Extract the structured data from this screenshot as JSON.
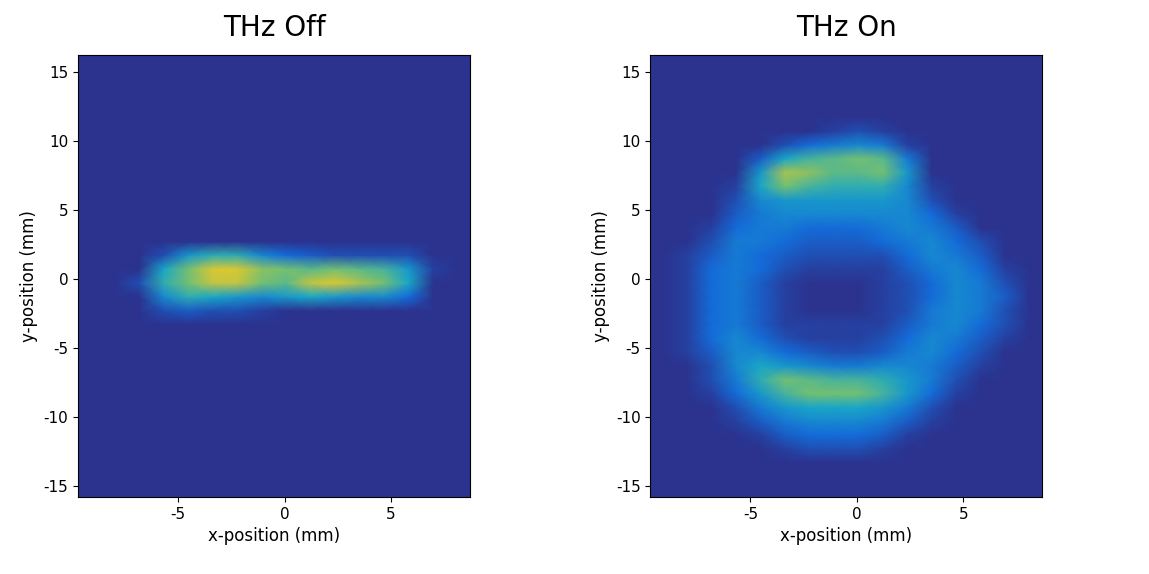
{
  "chart_data": [
    {
      "type": "heatmap",
      "title": "THz Off",
      "x_label": "x-position (mm)",
      "y_label": "y-position (mm)",
      "xlim": [
        -9.7,
        8.7
      ],
      "ylim": [
        -15.8,
        16.2
      ],
      "xticks": [
        -5,
        0,
        5
      ],
      "yticks": [
        -15,
        -10,
        -5,
        0,
        5,
        10,
        15
      ],
      "clim": [
        0,
        1
      ],
      "x_edges": [
        -9.7,
        -8.55,
        -7.4,
        -6.25,
        -5.1,
        -3.95,
        -2.8,
        -1.65,
        -0.5,
        0.65,
        1.8,
        2.95,
        4.1,
        5.25,
        6.4,
        7.55,
        8.7
      ],
      "y_edges": [
        -15.8,
        -14.8,
        -13.8,
        -12.8,
        -11.8,
        -10.8,
        -9.8,
        -8.8,
        -7.8,
        -6.8,
        -5.8,
        -4.8,
        -3.8,
        -2.8,
        -1.8,
        -0.8,
        0.2,
        1.2,
        2.2,
        3.2,
        4.2,
        5.2,
        6.2,
        7.2,
        8.2,
        9.2,
        10.2,
        11.2,
        12.2,
        13.2,
        14.2,
        15.2,
        16.2
      ],
      "cells": [
        [
          0,
          0,
          0,
          0,
          0,
          0,
          0,
          0,
          0,
          0,
          0,
          0,
          0,
          0,
          0,
          0
        ],
        [
          0,
          0,
          0,
          0,
          0,
          0,
          0,
          0,
          0,
          0,
          0,
          0,
          0,
          0,
          0,
          0
        ],
        [
          0,
          0,
          0,
          0,
          0,
          0,
          0,
          0,
          0,
          0,
          0,
          0,
          0,
          0,
          0,
          0
        ],
        [
          0,
          0,
          0,
          0,
          0,
          0,
          0,
          0,
          0,
          0,
          0,
          0,
          0,
          0,
          0,
          0
        ],
        [
          0,
          0,
          0,
          0,
          0,
          0,
          0,
          0,
          0,
          0,
          0,
          0,
          0,
          0,
          0,
          0
        ],
        [
          0,
          0,
          0,
          0,
          0,
          0,
          0,
          0,
          0,
          0,
          0,
          0,
          0,
          0,
          0,
          0
        ],
        [
          0,
          0,
          0,
          0,
          0,
          0,
          0,
          0,
          0,
          0,
          0,
          0,
          0,
          0,
          0,
          0
        ],
        [
          0,
          0,
          0,
          0,
          0,
          0,
          0,
          0,
          0,
          0,
          0,
          0,
          0,
          0,
          0,
          0
        ],
        [
          0,
          0,
          0,
          0,
          0,
          0,
          0,
          0,
          0,
          0,
          0,
          0,
          0,
          0,
          0,
          0
        ],
        [
          0,
          0,
          0,
          0,
          0,
          0,
          0,
          0,
          0,
          0,
          0,
          0,
          0,
          0,
          0,
          0
        ],
        [
          0,
          0,
          0,
          0,
          0,
          0,
          0,
          0,
          0,
          0,
          0,
          0,
          0,
          0,
          0,
          0
        ],
        [
          0,
          0,
          0,
          0,
          0,
          0,
          0,
          0,
          0,
          0,
          0,
          0,
          0,
          0,
          0,
          0
        ],
        [
          0,
          0,
          0,
          0,
          0,
          0,
          0,
          0,
          0,
          0,
          0,
          0,
          0,
          0,
          0,
          0
        ],
        [
          0,
          0,
          0,
          0.1,
          0.15,
          0.1,
          0.1,
          0.05,
          0,
          0,
          0,
          0,
          0,
          0,
          0,
          0
        ],
        [
          0,
          0,
          0,
          0.3,
          0.45,
          0.4,
          0.35,
          0.3,
          0.35,
          0.4,
          0.35,
          0.3,
          0.3,
          0.2,
          0,
          0
        ],
        [
          0,
          0,
          0.1,
          0.45,
          0.6,
          0.75,
          0.75,
          0.6,
          0.55,
          0.75,
          0.8,
          0.7,
          0.6,
          0.4,
          0,
          0
        ],
        [
          0,
          0,
          0,
          0.4,
          0.6,
          0.8,
          0.8,
          0.65,
          0.6,
          0.55,
          0.6,
          0.55,
          0.5,
          0.35,
          0.05,
          0
        ],
        [
          0,
          0,
          0,
          0.1,
          0.35,
          0.45,
          0.45,
          0.3,
          0.2,
          0.15,
          0.1,
          0.1,
          0.1,
          0.1,
          0,
          0
        ],
        [
          0,
          0,
          0,
          0,
          0,
          0,
          0,
          0,
          0,
          0,
          0,
          0,
          0,
          0,
          0,
          0
        ],
        [
          0,
          0,
          0,
          0,
          0,
          0,
          0,
          0,
          0,
          0,
          0,
          0,
          0,
          0,
          0,
          0
        ],
        [
          0,
          0,
          0,
          0,
          0,
          0,
          0,
          0,
          0,
          0,
          0,
          0,
          0,
          0,
          0,
          0
        ],
        [
          0,
          0,
          0,
          0,
          0,
          0,
          0,
          0,
          0,
          0,
          0,
          0,
          0,
          0,
          0,
          0
        ],
        [
          0,
          0,
          0,
          0,
          0,
          0,
          0,
          0,
          0,
          0,
          0,
          0,
          0,
          0,
          0,
          0
        ],
        [
          0,
          0,
          0,
          0,
          0,
          0,
          0,
          0,
          0,
          0,
          0,
          0,
          0,
          0,
          0,
          0
        ],
        [
          0,
          0,
          0,
          0,
          0,
          0,
          0,
          0,
          0,
          0,
          0,
          0,
          0,
          0,
          0,
          0
        ],
        [
          0,
          0,
          0,
          0,
          0,
          0,
          0,
          0,
          0,
          0,
          0,
          0,
          0,
          0,
          0,
          0
        ],
        [
          0,
          0,
          0,
          0,
          0,
          0,
          0,
          0,
          0,
          0,
          0,
          0,
          0,
          0,
          0,
          0
        ],
        [
          0,
          0,
          0,
          0,
          0,
          0,
          0,
          0,
          0,
          0,
          0,
          0,
          0,
          0,
          0,
          0
        ],
        [
          0,
          0,
          0,
          0,
          0,
          0,
          0,
          0,
          0,
          0,
          0,
          0,
          0,
          0,
          0,
          0
        ],
        [
          0,
          0,
          0,
          0,
          0,
          0,
          0,
          0,
          0,
          0,
          0,
          0,
          0,
          0,
          0,
          0
        ],
        [
          0,
          0,
          0,
          0,
          0,
          0,
          0,
          0,
          0,
          0,
          0,
          0,
          0,
          0,
          0,
          0
        ],
        [
          0,
          0,
          0,
          0,
          0,
          0,
          0,
          0,
          0,
          0,
          0,
          0,
          0,
          0,
          0,
          0
        ]
      ]
    },
    {
      "type": "heatmap",
      "title": "THz On",
      "x_label": "x-position (mm)",
      "y_label": "y-position (mm)",
      "xlim": [
        -9.7,
        8.7
      ],
      "ylim": [
        -15.8,
        16.2
      ],
      "xticks": [
        -5,
        0,
        5
      ],
      "yticks": [
        -15,
        -10,
        -5,
        0,
        5,
        10,
        15
      ],
      "clim": [
        0,
        1
      ],
      "x_edges": [
        -9.7,
        -8.55,
        -7.4,
        -6.25,
        -5.1,
        -3.95,
        -2.8,
        -1.65,
        -0.5,
        0.65,
        1.8,
        2.95,
        4.1,
        5.25,
        6.4,
        7.55,
        8.7
      ],
      "y_edges": [
        -15.8,
        -14.8,
        -13.8,
        -12.8,
        -11.8,
        -10.8,
        -9.8,
        -8.8,
        -7.8,
        -6.8,
        -5.8,
        -4.8,
        -3.8,
        -2.8,
        -1.8,
        -0.8,
        0.2,
        1.2,
        2.2,
        3.2,
        4.2,
        5.2,
        6.2,
        7.2,
        8.2,
        9.2,
        10.2,
        11.2,
        12.2,
        13.2,
        14.2,
        15.2,
        16.2
      ],
      "cells": [
        [
          0,
          0,
          0,
          0,
          0,
          0,
          0,
          0,
          0,
          0,
          0,
          0,
          0,
          0,
          0,
          0
        ],
        [
          0,
          0,
          0,
          0,
          0,
          0,
          0,
          0,
          0,
          0,
          0,
          0,
          0,
          0,
          0,
          0
        ],
        [
          0,
          0,
          0,
          0,
          0,
          0,
          0,
          0,
          0,
          0,
          0,
          0,
          0,
          0,
          0,
          0
        ],
        [
          0,
          0,
          0,
          0,
          0,
          0.05,
          0.1,
          0.1,
          0.1,
          0.05,
          0,
          0,
          0,
          0,
          0,
          0
        ],
        [
          0,
          0,
          0,
          0,
          0.05,
          0.15,
          0.2,
          0.2,
          0.2,
          0.15,
          0.05,
          0,
          0,
          0,
          0,
          0
        ],
        [
          0,
          0,
          0,
          0.05,
          0.15,
          0.25,
          0.3,
          0.3,
          0.3,
          0.25,
          0.15,
          0.05,
          0,
          0,
          0,
          0
        ],
        [
          0,
          0,
          0,
          0.1,
          0.25,
          0.35,
          0.4,
          0.4,
          0.4,
          0.35,
          0.25,
          0.1,
          0,
          0,
          0,
          0
        ],
        [
          0,
          0,
          0.05,
          0.2,
          0.35,
          0.5,
          0.6,
          0.6,
          0.6,
          0.5,
          0.35,
          0.2,
          0.05,
          0,
          0,
          0
        ],
        [
          0,
          0,
          0.1,
          0.25,
          0.45,
          0.6,
          0.55,
          0.5,
          0.5,
          0.45,
          0.35,
          0.25,
          0.1,
          0,
          0,
          0
        ],
        [
          0,
          0,
          0.1,
          0.3,
          0.4,
          0.35,
          0.3,
          0.25,
          0.25,
          0.3,
          0.3,
          0.25,
          0.15,
          0.05,
          0,
          0
        ],
        [
          0,
          0.05,
          0.15,
          0.3,
          0.3,
          0.2,
          0.15,
          0.1,
          0.1,
          0.15,
          0.25,
          0.3,
          0.2,
          0.1,
          0,
          0
        ],
        [
          0,
          0.05,
          0.2,
          0.3,
          0.2,
          0.1,
          0.05,
          0.05,
          0.05,
          0.1,
          0.2,
          0.3,
          0.25,
          0.15,
          0.05,
          0
        ],
        [
          0,
          0.05,
          0.2,
          0.25,
          0.15,
          0.05,
          0.05,
          0.05,
          0.05,
          0.05,
          0.15,
          0.25,
          0.3,
          0.2,
          0.1,
          0
        ],
        [
          0,
          0.05,
          0.2,
          0.25,
          0.15,
          0.05,
          0,
          0,
          0,
          0.05,
          0.1,
          0.25,
          0.3,
          0.25,
          0.1,
          0
        ],
        [
          0,
          0.05,
          0.2,
          0.25,
          0.15,
          0.05,
          0,
          0,
          0,
          0.05,
          0.1,
          0.2,
          0.3,
          0.25,
          0.15,
          0
        ],
        [
          0,
          0.05,
          0.2,
          0.25,
          0.15,
          0.05,
          0,
          0,
          0,
          0.05,
          0.1,
          0.2,
          0.3,
          0.25,
          0.1,
          0
        ],
        [
          0,
          0.05,
          0.2,
          0.25,
          0.2,
          0.1,
          0.05,
          0.05,
          0.05,
          0.05,
          0.15,
          0.25,
          0.3,
          0.2,
          0.05,
          0
        ],
        [
          0,
          0.05,
          0.15,
          0.25,
          0.2,
          0.15,
          0.1,
          0.1,
          0.1,
          0.1,
          0.2,
          0.3,
          0.25,
          0.15,
          0,
          0
        ],
        [
          0,
          0,
          0.1,
          0.25,
          0.25,
          0.2,
          0.15,
          0.15,
          0.15,
          0.2,
          0.25,
          0.3,
          0.2,
          0.1,
          0,
          0
        ],
        [
          0,
          0,
          0.05,
          0.2,
          0.25,
          0.25,
          0.2,
          0.2,
          0.2,
          0.25,
          0.3,
          0.25,
          0.15,
          0,
          0,
          0
        ],
        [
          0,
          0,
          0,
          0.15,
          0.25,
          0.3,
          0.3,
          0.3,
          0.3,
          0.3,
          0.3,
          0.2,
          0.05,
          0,
          0,
          0
        ],
        [
          0,
          0,
          0,
          0.1,
          0.3,
          0.35,
          0.35,
          0.35,
          0.35,
          0.35,
          0.3,
          0.1,
          0,
          0,
          0,
          0
        ],
        [
          0,
          0,
          0,
          0.05,
          0.4,
          0.6,
          0.5,
          0.45,
          0.45,
          0.45,
          0.3,
          0.05,
          0,
          0,
          0,
          0
        ],
        [
          0,
          0,
          0,
          0,
          0.35,
          0.7,
          0.65,
          0.55,
          0.55,
          0.6,
          0.35,
          0,
          0,
          0,
          0,
          0
        ],
        [
          0,
          0,
          0,
          0,
          0.15,
          0.4,
          0.5,
          0.55,
          0.6,
          0.55,
          0.25,
          0,
          0,
          0,
          0,
          0
        ],
        [
          0,
          0,
          0,
          0,
          0,
          0.1,
          0.2,
          0.25,
          0.3,
          0.25,
          0.05,
          0,
          0,
          0,
          0,
          0
        ],
        [
          0,
          0,
          0,
          0,
          0,
          0,
          0,
          0.05,
          0.1,
          0.05,
          0,
          0,
          0,
          0,
          0,
          0
        ],
        [
          0,
          0,
          0,
          0,
          0,
          0,
          0,
          0,
          0,
          0,
          0,
          0,
          0,
          0,
          0,
          0
        ],
        [
          0,
          0,
          0,
          0,
          0,
          0,
          0,
          0,
          0,
          0,
          0,
          0,
          0,
          0,
          0,
          0
        ],
        [
          0,
          0,
          0,
          0,
          0,
          0,
          0,
          0,
          0,
          0,
          0,
          0,
          0,
          0,
          0,
          0
        ],
        [
          0,
          0,
          0,
          0,
          0,
          0,
          0,
          0,
          0,
          0,
          0,
          0,
          0,
          0,
          0,
          0
        ],
        [
          0,
          0,
          0,
          0,
          0,
          0,
          0,
          0,
          0,
          0,
          0,
          0,
          0,
          0,
          0,
          0
        ]
      ]
    }
  ]
}
